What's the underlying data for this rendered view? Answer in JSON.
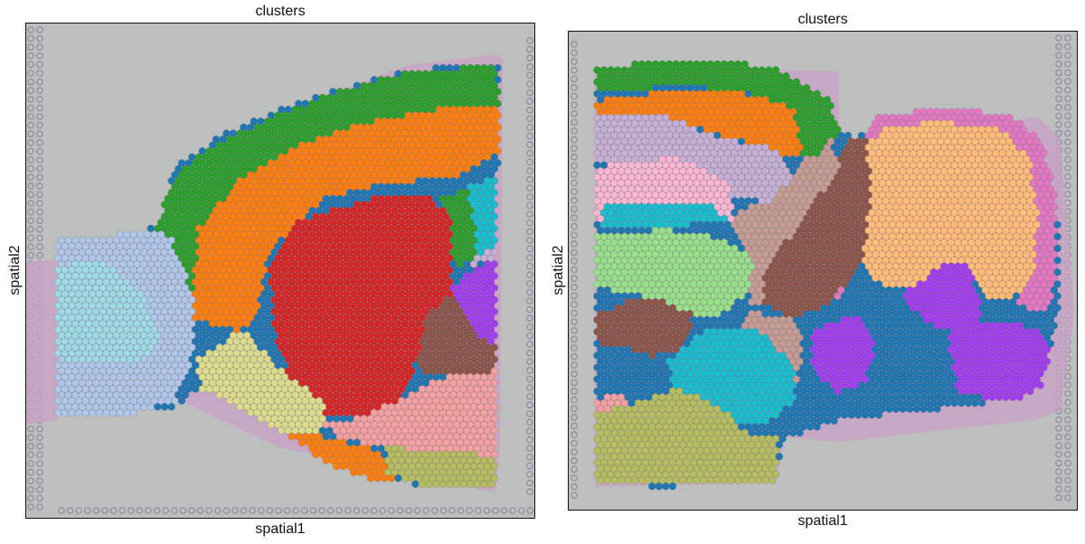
{
  "chart_data": [
    {
      "type": "scatter",
      "title": "clusters",
      "xlabel": "spatial1",
      "ylabel": "spatial2",
      "legend": "none",
      "grid": false,
      "colors": {
        "background": "#bdbfbe",
        "tissue_pink": "#c9a0c6",
        "fiducial": "#8e8aa0",
        "c_blue": "#1f77b4",
        "c_green": "#2ca02c",
        "c_orange": "#ff7f0e",
        "c_red": "#d62728",
        "c_purple": "#a13ef0",
        "c_brown": "#8c564b",
        "c_pink": "#f2a0a0",
        "c_lightblue": "#aec7e8",
        "c_paleblue": "#9edae5",
        "c_yellow": "#dbdb8d",
        "c_olive": "#b5bd61",
        "c_cyan": "#17becf",
        "c_mint": "#98df8a",
        "c_lavender": "#c5b0d5",
        "c_rose": "#c49c94",
        "c_magenta": "#e377c2",
        "c_peach": "#ffbb78",
        "c_lightpink": "#f7b6d2"
      }
    },
    {
      "type": "scatter",
      "title": "clusters",
      "xlabel": "spatial1",
      "ylabel": "spatial2",
      "legend": "none",
      "grid": false,
      "colors": {
        "background": "#bdbfbe",
        "tissue_pink": "#c9a0c6",
        "fiducial": "#8e8aa0",
        "c_blue": "#1f77b4",
        "c_green": "#2ca02c",
        "c_orange": "#ff7f0e",
        "c_brown": "#8c564b",
        "c_purple": "#a13ef0",
        "c_pink": "#f2a0a0",
        "c_cyan": "#17becf",
        "c_mint": "#98df8a",
        "c_lavender": "#c5b0d5",
        "c_rose": "#c49c94",
        "c_magenta": "#e377c2",
        "c_peach": "#ffbb78",
        "c_lightpink": "#f7b6d2",
        "c_olive": "#b5bd61"
      }
    }
  ]
}
